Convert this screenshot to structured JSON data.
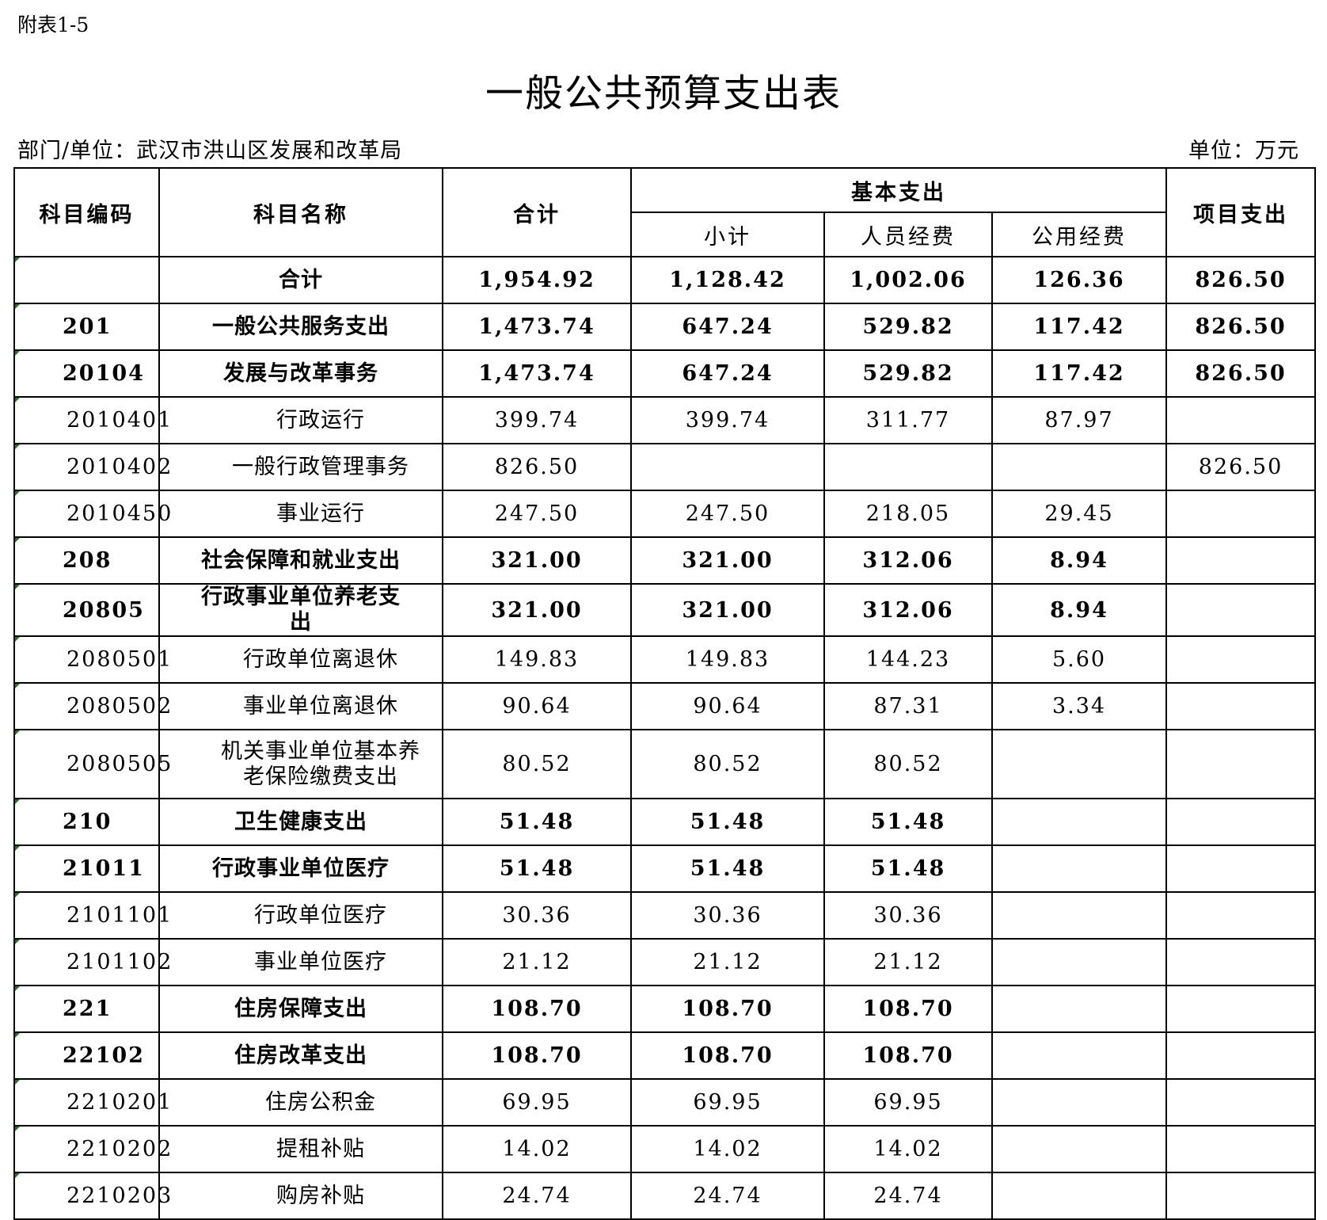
{
  "header": {
    "note": "附表1-5",
    "title": "一般公共预算支出表",
    "department": "部门/单位：武汉市洪山区发展和改革局",
    "unit": "单位：万元"
  },
  "table": {
    "columns": {
      "code": "科目编码",
      "name": "科目名称",
      "total": "合计",
      "basic": "基本支出",
      "subtotal": "小计",
      "personnel": "人员经费",
      "public": "公用经费",
      "project": "项目支出"
    },
    "rows": [
      [
        null,
        "合计",
        "1,954.92",
        "1,128.42",
        "1,002.06",
        "126.36",
        "826.50"
      ],
      [
        "201",
        "一般公共服务支出",
        "1,473.74",
        "647.24",
        "529.82",
        "117.42",
        "826.50"
      ],
      [
        "20104",
        "发展与改革事务",
        "1,473.74",
        "647.24",
        "529.82",
        "117.42",
        "826.50"
      ],
      [
        "2010401",
        "行政运行",
        "399.74",
        "399.74",
        "311.77",
        "87.97",
        null
      ],
      [
        "2010402",
        "一般行政管理事务",
        "826.50",
        null,
        null,
        null,
        "826.50"
      ],
      [
        "2010450",
        "事业运行",
        "247.50",
        "247.50",
        "218.05",
        "29.45",
        null
      ],
      [
        "208",
        "社会保障和就业支出",
        "321.00",
        "321.00",
        "312.06",
        "8.94",
        null
      ],
      [
        "20805",
        "行政事业单位养老支出",
        "321.00",
        "321.00",
        "312.06",
        "8.94",
        null
      ],
      [
        "2080501",
        "行政单位离退休",
        "149.83",
        "149.83",
        "144.23",
        "5.60",
        null
      ],
      [
        "2080502",
        "事业单位离退休",
        "90.64",
        "90.64",
        "87.31",
        "3.34",
        null
      ],
      [
        "2080505",
        "机关事业单位基本养老保险缴费支出",
        "80.52",
        "80.52",
        "80.52",
        null,
        null
      ],
      [
        "210",
        "卫生健康支出",
        "51.48",
        "51.48",
        "51.48",
        null,
        null
      ],
      [
        "21011",
        "行政事业单位医疗",
        "51.48",
        "51.48",
        "51.48",
        null,
        null
      ],
      [
        "2101101",
        "行政单位医疗",
        "30.36",
        "30.36",
        "30.36",
        null,
        null
      ],
      [
        "2101102",
        "事业单位医疗",
        "21.12",
        "21.12",
        "21.12",
        null,
        null
      ],
      [
        "221",
        "住房保障支出",
        "108.70",
        "108.70",
        "108.70",
        null,
        null
      ],
      [
        "22102",
        "住房改革支出",
        "108.70",
        "108.70",
        "108.70",
        null,
        null
      ],
      [
        "2210201",
        "住房公积金",
        "69.95",
        "69.95",
        "69.95",
        null,
        null
      ],
      [
        "2210202",
        "提租补贴",
        "14.02",
        "14.02",
        "14.02",
        null,
        null
      ],
      [
        "2210203",
        "购房补贴",
        "24.74",
        "24.74",
        "24.74",
        null,
        null
      ]
    ]
  }
}
